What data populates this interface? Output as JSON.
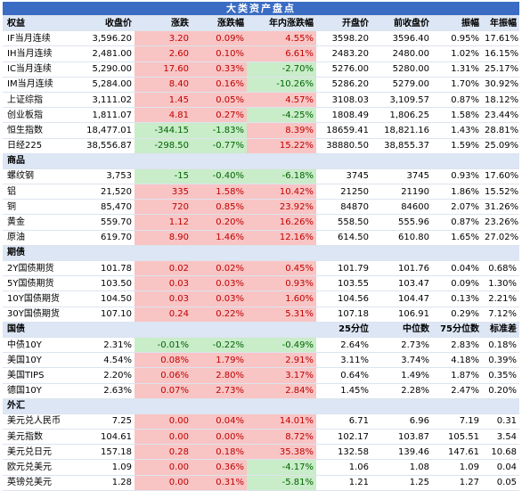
{
  "title": "大类资产盘点",
  "headers": [
    "权益",
    "收盘价",
    "涨跌",
    "涨跌幅",
    "年内涨跌幅",
    "开盘价",
    "前收盘价",
    "振幅",
    "年振幅"
  ],
  "bond_headers": [
    "国债",
    "",
    "",
    "",
    "",
    "25分位",
    "中位数",
    "75分位数",
    "标准差"
  ],
  "colors": {
    "up_bg": "#f8c4c4",
    "up_text": "#c00000",
    "down_bg": "#c9ecc9",
    "down_text": "#006400",
    "title_bg": "#3a6cc4",
    "header_bg": "#dce6f4"
  },
  "sections": [
    {
      "name": "",
      "rows": [
        [
          "IF当月连续",
          "3,596.20",
          "3.20",
          "0.09%",
          "4.55%",
          "3598.20",
          "3596.40",
          "0.95%",
          "17.61%"
        ],
        [
          "IH当月连续",
          "2,481.00",
          "2.60",
          "0.10%",
          "6.61%",
          "2483.20",
          "2480.00",
          "1.02%",
          "16.15%"
        ],
        [
          "IC当月连续",
          "5,290.00",
          "17.60",
          "0.33%",
          "-2.70%",
          "5276.00",
          "5280.00",
          "1.31%",
          "25.17%"
        ],
        [
          "IM当月连续",
          "5,284.00",
          "8.40",
          "0.16%",
          "-10.26%",
          "5286.20",
          "5279.00",
          "1.70%",
          "30.92%"
        ],
        [
          "上证综指",
          "3,111.02",
          "1.45",
          "0.05%",
          "4.57%",
          "3108.03",
          "3,109.57",
          "0.87%",
          "18.12%"
        ],
        [
          "创业板指",
          "1,811.07",
          "4.81",
          "0.27%",
          "-4.25%",
          "1808.49",
          "1,806.25",
          "1.58%",
          "23.44%"
        ],
        [
          "恒生指数",
          "18,477.01",
          "-344.15",
          "-1.83%",
          "8.39%",
          "18659.41",
          "18,821.16",
          "1.43%",
          "28.81%"
        ],
        [
          "日经225",
          "38,556.87",
          "-298.50",
          "-0.77%",
          "15.22%",
          "38880.50",
          "38,855.37",
          "1.59%",
          "25.09%"
        ]
      ]
    },
    {
      "name": "商品",
      "rows": [
        [
          "螺纹钢",
          "3,753",
          "-15",
          "-0.40%",
          "-6.18%",
          "3745",
          "3745",
          "0.93%",
          "17.60%"
        ],
        [
          "铝",
          "21,520",
          "335",
          "1.58%",
          "10.42%",
          "21250",
          "21190",
          "1.86%",
          "15.52%"
        ],
        [
          "铜",
          "85,470",
          "720",
          "0.85%",
          "23.92%",
          "84870",
          "84600",
          "2.07%",
          "31.26%"
        ],
        [
          "黄金",
          "559.70",
          "1.12",
          "0.20%",
          "16.26%",
          "558.50",
          "555.96",
          "0.87%",
          "23.26%"
        ],
        [
          "原油",
          "619.70",
          "8.90",
          "1.46%",
          "12.16%",
          "614.50",
          "610.80",
          "1.65%",
          "27.02%"
        ]
      ]
    },
    {
      "name": "期债",
      "rows": [
        [
          "2Y国债期货",
          "101.78",
          "0.02",
          "0.02%",
          "0.45%",
          "101.79",
          "101.76",
          "0.04%",
          "0.68%"
        ],
        [
          "5Y国债期货",
          "103.50",
          "0.03",
          "0.03%",
          "0.93%",
          "103.55",
          "103.47",
          "0.09%",
          "1.30%"
        ],
        [
          "10Y国债期货",
          "104.50",
          "0.03",
          "0.03%",
          "1.60%",
          "104.56",
          "104.47",
          "0.13%",
          "2.21%"
        ],
        [
          "30Y国债期货",
          "107.10",
          "0.24",
          "0.22%",
          "5.31%",
          "107.18",
          "106.91",
          "0.29%",
          "7.12%"
        ]
      ]
    },
    {
      "name": "国债",
      "header": true,
      "rows": [
        [
          "中债10Y",
          "2.31%",
          "-0.01%",
          "-0.22%",
          "-0.49%",
          "2.64%",
          "2.73%",
          "2.83%",
          "0.18%"
        ],
        [
          "美国10Y",
          "4.54%",
          "0.08%",
          "1.79%",
          "2.91%",
          "3.11%",
          "3.74%",
          "4.18%",
          "0.39%"
        ],
        [
          "美国TIPS",
          "2.20%",
          "0.06%",
          "2.80%",
          "3.17%",
          "0.64%",
          "1.49%",
          "1.87%",
          "0.35%"
        ],
        [
          "德国10Y",
          "2.63%",
          "0.07%",
          "2.73%",
          "2.84%",
          "1.45%",
          "2.28%",
          "2.47%",
          "0.20%"
        ]
      ]
    },
    {
      "name": "外汇",
      "rows": [
        [
          "美元兑人民币",
          "7.25",
          "0.00",
          "0.04%",
          "14.01%",
          "6.71",
          "6.96",
          "7.19",
          "0.31"
        ],
        [
          "美元指数",
          "104.61",
          "0.00",
          "0.00%",
          "8.72%",
          "102.17",
          "103.87",
          "105.51",
          "3.54"
        ],
        [
          "美元兑日元",
          "157.18",
          "0.28",
          "0.18%",
          "35.38%",
          "132.58",
          "139.46",
          "147.61",
          "10.68"
        ],
        [
          "欧元兑美元",
          "1.09",
          "0.00",
          "0.36%",
          "-4.17%",
          "1.06",
          "1.08",
          "1.09",
          "0.04"
        ],
        [
          "英镑兑美元",
          "1.28",
          "0.00",
          "0.31%",
          "-5.81%",
          "1.21",
          "1.25",
          "1.27",
          "0.05"
        ]
      ]
    }
  ]
}
